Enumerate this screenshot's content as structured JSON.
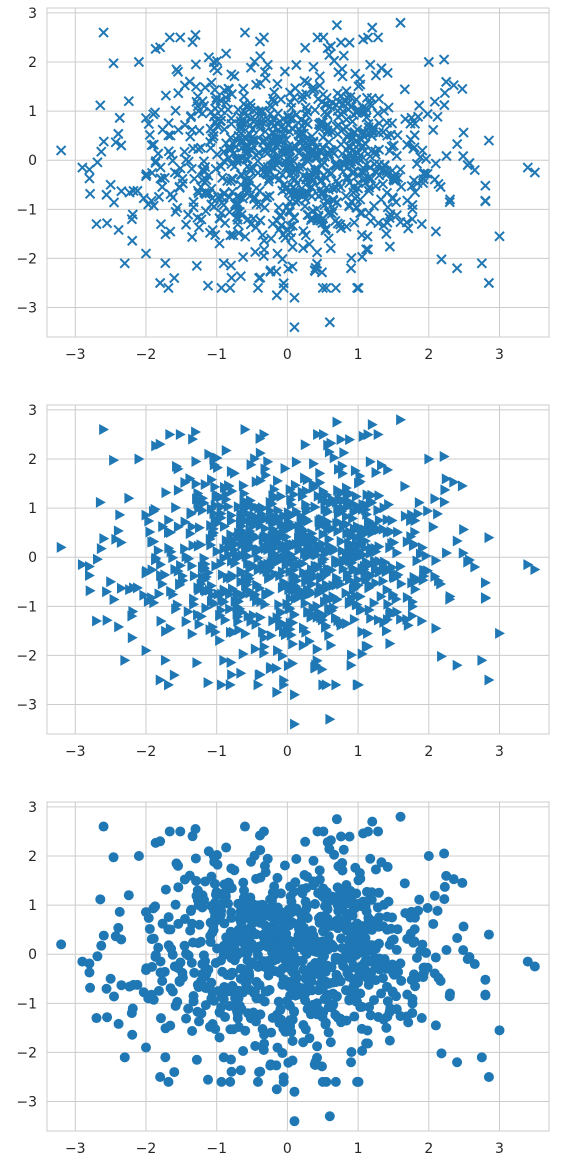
{
  "chart_data": [
    {
      "type": "scatter",
      "marker": "x",
      "marker_color": "#1f77b4",
      "xlim": [
        -3.4,
        3.7
      ],
      "ylim": [
        -3.6,
        3.1
      ],
      "xticks": [
        -3,
        -2,
        -1,
        0,
        1,
        2,
        3
      ],
      "yticks": [
        -3,
        -2,
        -1,
        0,
        1,
        2,
        3
      ],
      "xtick_labels": [
        "−3",
        "−2",
        "−1",
        "0",
        "1",
        "2",
        "3"
      ],
      "ytick_labels": [
        "−3",
        "−2",
        "−1",
        "0",
        "1",
        "2",
        "3"
      ],
      "grid": true,
      "point_count": 1000,
      "distribution": "standard normal (both axes)"
    },
    {
      "type": "scatter",
      "marker": "triangle-right",
      "marker_color": "#1f77b4",
      "xlim": [
        -3.4,
        3.7
      ],
      "ylim": [
        -3.6,
        3.1
      ],
      "xticks": [
        -3,
        -2,
        -1,
        0,
        1,
        2,
        3
      ],
      "yticks": [
        -3,
        -2,
        -1,
        0,
        1,
        2,
        3
      ],
      "xtick_labels": [
        "−3",
        "−2",
        "−1",
        "0",
        "1",
        "2",
        "3"
      ],
      "ytick_labels": [
        "−3",
        "−2",
        "−1",
        "0",
        "1",
        "2",
        "3"
      ],
      "grid": true,
      "point_count": 1000,
      "distribution": "standard normal (both axes)"
    },
    {
      "type": "scatter",
      "marker": "circle",
      "marker_color": "#1f77b4",
      "xlim": [
        -3.4,
        3.7
      ],
      "ylim": [
        -3.6,
        3.1
      ],
      "xticks": [
        -3,
        -2,
        -1,
        0,
        1,
        2,
        3
      ],
      "yticks": [
        -3,
        -2,
        -1,
        0,
        1,
        2,
        3
      ],
      "xtick_labels": [
        "−3",
        "−2",
        "−1",
        "0",
        "1",
        "2",
        "3"
      ],
      "ytick_labels": [
        "−3",
        "−2",
        "−1",
        "0",
        "1",
        "2",
        "3"
      ],
      "grid": true,
      "point_count": 1000,
      "distribution": "standard normal (both axes)"
    }
  ],
  "outliers": [
    [
      -3.2,
      0.2
    ],
    [
      -2.9,
      -0.15
    ],
    [
      -2.6,
      2.6
    ],
    [
      -2.7,
      -1.3
    ],
    [
      -2.5,
      -0.5
    ],
    [
      -2.3,
      -2.1
    ],
    [
      -2.2,
      -1.2
    ],
    [
      -2.1,
      2.0
    ],
    [
      -1.8,
      -2.5
    ],
    [
      -1.6,
      -2.4
    ],
    [
      -1.8,
      2.3
    ],
    [
      -1.3,
      2.55
    ],
    [
      -0.6,
      2.6
    ],
    [
      -0.4,
      -2.4
    ],
    [
      -0.15,
      -2.75
    ],
    [
      0.1,
      -2.8
    ],
    [
      0.1,
      -3.4
    ],
    [
      0.6,
      -3.3
    ],
    [
      0.55,
      -2.6
    ],
    [
      0.7,
      2.75
    ],
    [
      1.2,
      2.7
    ],
    [
      1.6,
      2.8
    ],
    [
      2.0,
      2.0
    ],
    [
      2.1,
      -1.45
    ],
    [
      2.4,
      -2.2
    ],
    [
      2.55,
      -0.1
    ],
    [
      2.75,
      -2.1
    ],
    [
      2.85,
      -2.5
    ],
    [
      2.85,
      0.4
    ],
    [
      3.0,
      -1.55
    ],
    [
      3.4,
      -0.15
    ],
    [
      3.5,
      -0.25
    ],
    [
      2.3,
      -0.8
    ],
    [
      2.65,
      -0.2
    ],
    [
      -2.35,
      0.3
    ],
    [
      1.4,
      -1.5
    ],
    [
      -0.9,
      -2.1
    ],
    [
      0.9,
      -2.2
    ],
    [
      1.9,
      -1.3
    ],
    [
      -2.0,
      -1.9
    ]
  ]
}
